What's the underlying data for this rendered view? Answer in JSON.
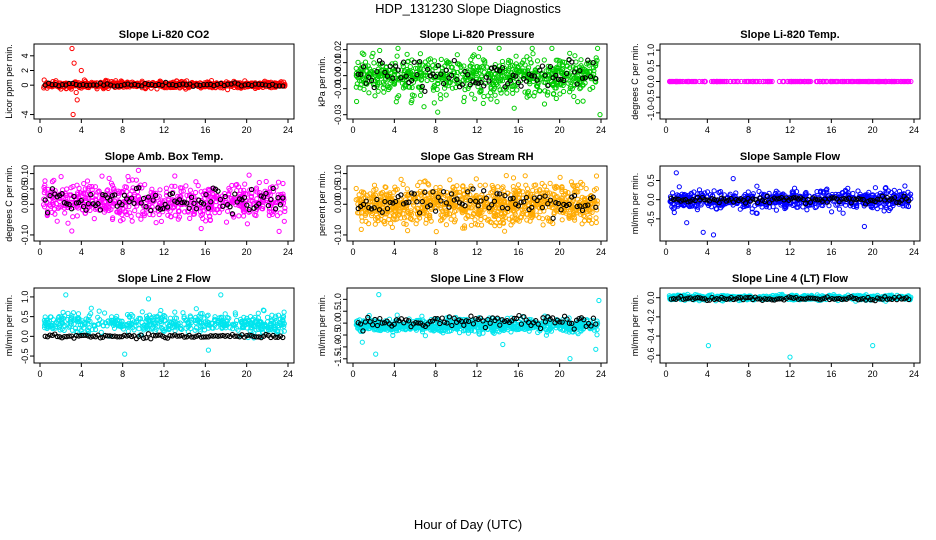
{
  "title": "HDP_131230  Slope Diagnostics",
  "xlabel": "Hour of Day (UTC)",
  "chart_data": [
    {
      "type": "scatter",
      "title": "Slope Li-820 CO2",
      "ylabel": "Licor ppm per min.",
      "xlim": [
        0,
        24
      ],
      "ylim": [
        -4.2,
        5.2
      ],
      "yticks": [
        "-4",
        "0",
        "2",
        "4"
      ],
      "ytick_values": [
        -4,
        0,
        2,
        4
      ],
      "xticks": [
        "0",
        "4",
        "8",
        "12",
        "16",
        "20",
        "24"
      ],
      "primary_color": "#ff0000",
      "primary_center": 0.05,
      "primary_spread": 0.35,
      "primary_count": 700,
      "overlay_center": 0.05,
      "overlay_spread": 0.2,
      "overlay_count": 70,
      "outliers": [
        [
          3.1,
          5.0
        ],
        [
          3.3,
          3.0
        ],
        [
          3.5,
          -1.0
        ],
        [
          3.2,
          -4.0
        ],
        [
          4.0,
          2.0
        ],
        [
          3.6,
          -2.0
        ]
      ]
    },
    {
      "type": "scatter",
      "title": "Slope Li-820 Pressure",
      "ylabel": "kPa per min.",
      "xlim": [
        0,
        24
      ],
      "ylim": [
        -0.031,
        0.022
      ],
      "yticks": [
        "-0.03",
        "-0.01",
        "0.00",
        "0.01",
        "0.02"
      ],
      "ytick_values": [
        -0.03,
        -0.01,
        0,
        0.01,
        0.02
      ],
      "xticks": [
        "0",
        "4",
        "8",
        "12",
        "16",
        "20",
        "24"
      ],
      "primary_color": "#00cc00",
      "primary_center": 0.0,
      "primary_spread": 0.012,
      "primary_count": 700,
      "overlay_center": 0.0,
      "overlay_spread": 0.01,
      "overlay_count": 90,
      "outliers": [
        [
          8.2,
          -0.028
        ],
        [
          15.6,
          -0.025
        ],
        [
          23.9,
          -0.03
        ]
      ]
    },
    {
      "type": "scatter",
      "title": "Slope Li-820 Temp.",
      "ylabel": "degrees C per min.",
      "xlim": [
        0,
        24
      ],
      "ylim": [
        -1.1,
        1.1
      ],
      "yticks": [
        "-1.0",
        "-0.5",
        "0.0",
        "0.5",
        "1.0"
      ],
      "ytick_values": [
        -1,
        -0.5,
        0,
        0.5,
        1
      ],
      "xticks": [
        "0",
        "4",
        "8",
        "12",
        "16",
        "20",
        "24"
      ],
      "primary_color": "#ff00ff",
      "primary_center": 0.0,
      "primary_spread": 0.0,
      "primary_count": 260,
      "overlay_center": 0.0,
      "overlay_spread": 0.0,
      "overlay_count": 0,
      "outliers": []
    },
    {
      "type": "scatter",
      "title": "Slope Amb. Box Temp.",
      "ylabel": "degrees C per min.",
      "xlim": [
        0,
        24
      ],
      "ylim": [
        -0.11,
        0.115
      ],
      "yticks": [
        "-0.10",
        "0.00",
        "0.05",
        "0.10"
      ],
      "ytick_values": [
        -0.1,
        0,
        0.05,
        0.1
      ],
      "xticks": [
        "0",
        "4",
        "8",
        "12",
        "16",
        "20",
        "24"
      ],
      "primary_color": "#ff00ff",
      "primary_center": 0.01,
      "primary_spread": 0.05,
      "primary_count": 650,
      "overlay_center": 0.01,
      "overlay_spread": 0.035,
      "overlay_count": 100,
      "outliers": []
    },
    {
      "type": "scatter",
      "title": "Slope Gas Stream RH",
      "ylabel": "percent per min.",
      "xlim": [
        0,
        24
      ],
      "ylim": [
        -0.11,
        0.115
      ],
      "yticks": [
        "-0.10",
        "0.00",
        "0.05",
        "0.10"
      ],
      "ytick_values": [
        -0.1,
        0,
        0.05,
        0.1
      ],
      "xticks": [
        "0",
        "4",
        "8",
        "12",
        "16",
        "20",
        "24"
      ],
      "primary_color": "#ffaa00",
      "primary_center": 0.0,
      "primary_spread": 0.05,
      "primary_count": 900,
      "overlay_center": 0.005,
      "overlay_spread": 0.03,
      "overlay_count": 90,
      "outliers": []
    },
    {
      "type": "scatter",
      "title": "Slope Sample Flow",
      "ylabel": "ml/min per min.",
      "xlim": [
        0,
        24
      ],
      "ylim": [
        -1.0,
        0.8
      ],
      "yticks": [
        "-0.5",
        "0.0",
        "0.5"
      ],
      "ytick_values": [
        -0.5,
        0,
        0.5
      ],
      "xticks": [
        "0",
        "4",
        "8",
        "12",
        "16",
        "20",
        "24"
      ],
      "primary_color": "#0000ff",
      "primary_center": 0.0,
      "primary_spread": 0.18,
      "primary_count": 650,
      "overlay_center": 0.0,
      "overlay_spread": 0.07,
      "overlay_count": 100,
      "outliers": [
        [
          1.0,
          0.7
        ],
        [
          2.0,
          -0.6
        ],
        [
          3.6,
          -0.85
        ],
        [
          4.6,
          -0.92
        ],
        [
          6.5,
          0.55
        ],
        [
          19.2,
          -0.7
        ]
      ]
    },
    {
      "type": "scatter",
      "title": "Slope Line 2 Flow",
      "ylabel": "ml/min per min.",
      "xlim": [
        0,
        24
      ],
      "ylim": [
        -0.6,
        1.15
      ],
      "yticks": [
        "-0.5",
        "0.0",
        "0.5",
        "1.0"
      ],
      "ytick_values": [
        -0.5,
        0,
        0.5,
        1
      ],
      "xticks": [
        "0",
        "4",
        "8",
        "12",
        "16",
        "20",
        "24"
      ],
      "primary_color": "#00e5ee",
      "primary_center": 0.33,
      "primary_spread": 0.2,
      "primary_count": 500,
      "overlay_center": 0.0,
      "overlay_spread": 0.04,
      "overlay_count": 100,
      "outliers": [
        [
          2.5,
          1.05
        ],
        [
          10.5,
          0.95
        ],
        [
          17.5,
          1.05
        ],
        [
          8.2,
          -0.45
        ],
        [
          16.3,
          -0.35
        ]
      ]
    },
    {
      "type": "scatter",
      "title": "Slope Line 3 Flow",
      "ylabel": "ml/min per min.",
      "xlim": [
        0,
        24
      ],
      "ylim": [
        -1.55,
        1.35
      ],
      "yticks": [
        "-1.5",
        "-1.0",
        "-0.5",
        "0.0",
        "0.5",
        "1.0"
      ],
      "ytick_values": [
        -1.5,
        -1,
        -0.5,
        0,
        0.5,
        1
      ],
      "xticks": [
        "0",
        "4",
        "8",
        "12",
        "16",
        "20",
        "24"
      ],
      "primary_color": "#00e5ee",
      "primary_center": -0.1,
      "primary_spread": 0.22,
      "primary_count": 800,
      "overlay_center": 0.05,
      "overlay_spread": 0.25,
      "overlay_count": 100,
      "outliers": [
        [
          2.2,
          -1.3
        ],
        [
          2.5,
          1.2
        ],
        [
          21.0,
          -1.5
        ],
        [
          23.8,
          0.95
        ],
        [
          23.5,
          -1.1
        ],
        [
          14.5,
          -0.9
        ],
        [
          0.9,
          -0.8
        ]
      ]
    },
    {
      "type": "scatter",
      "title": "Slope Line 4 (LT) Flow",
      "ylabel": "ml/min per min.",
      "xlim": [
        0,
        24
      ],
      "ylim": [
        -0.65,
        0.07
      ],
      "yticks": [
        "-0.6",
        "-0.4",
        "-0.2",
        "0.0"
      ],
      "ytick_values": [
        -0.6,
        -0.4,
        -0.2,
        0
      ],
      "xticks": [
        "0",
        "4",
        "8",
        "12",
        "16",
        "20",
        "24"
      ],
      "primary_color": "#00e5ee",
      "primary_center": 0.0,
      "primary_spread": 0.02,
      "primary_count": 600,
      "overlay_center": -0.01,
      "overlay_spread": 0.015,
      "overlay_count": 100,
      "outliers": [
        [
          4.1,
          -0.5
        ],
        [
          12.0,
          -0.62
        ],
        [
          20.0,
          -0.5
        ]
      ]
    }
  ]
}
